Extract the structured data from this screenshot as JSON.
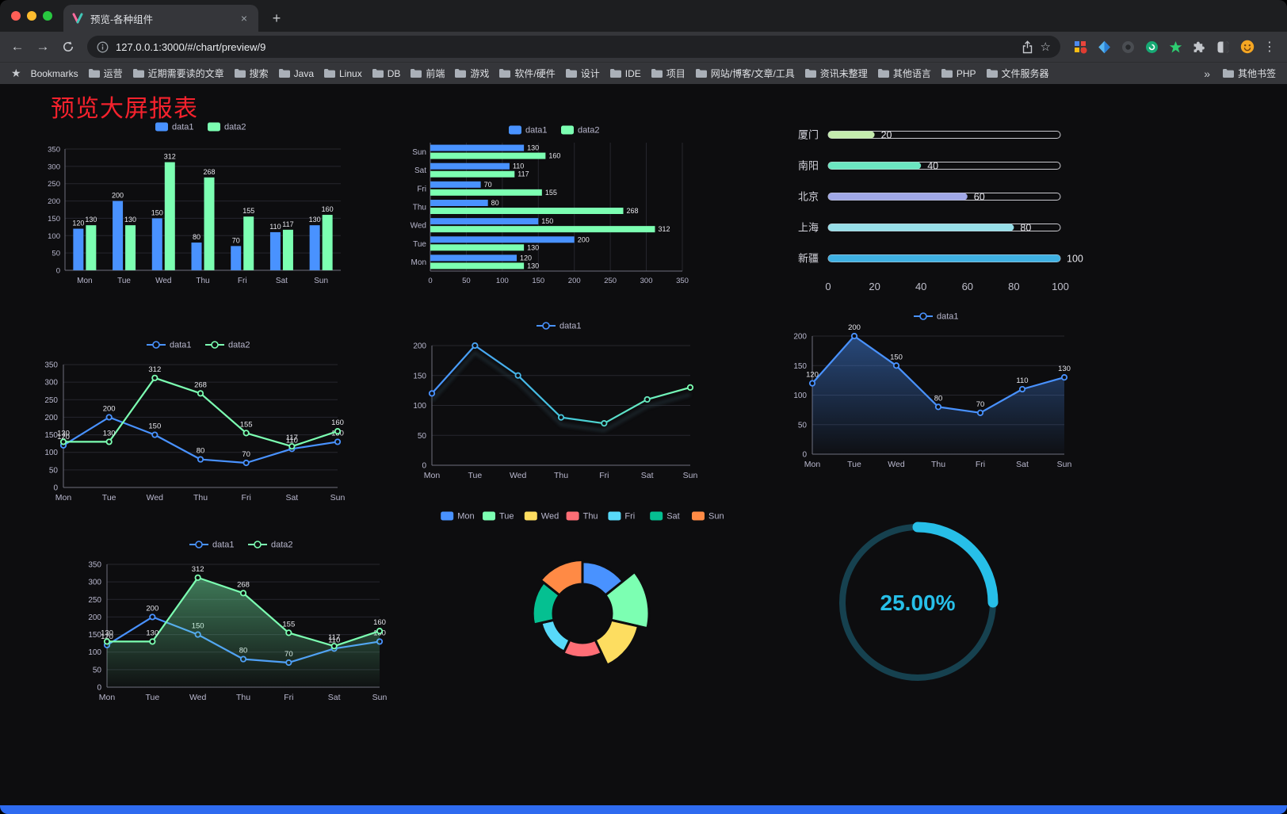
{
  "window": {
    "tab": {
      "title": "预览-各种组件"
    }
  },
  "icons": {
    "back": "←",
    "forward": "→",
    "new_tab": "+",
    "close_tab": "×",
    "menu": "⋮",
    "star_outline": "☆",
    "bookmarks_star": "★",
    "overflow": "»"
  },
  "toolbar": {
    "url": "127.0.0.1:3000/#/chart/preview/9"
  },
  "bookmarks_bar": {
    "bookmarks_label": "Bookmarks",
    "items": [
      "运营",
      "近期需要读的文章",
      "搜索",
      "Java",
      "Linux",
      "DB",
      "前端",
      "游戏",
      "软件/硬件",
      "设计",
      "IDE",
      "项目",
      "网站/博客/文章/工具",
      "资讯未整理",
      "其他语言",
      "PHP",
      "文件服务器"
    ],
    "other_bookmarks_label": "其他书签"
  },
  "page": {
    "title": "预览大屏报表",
    "accent_red": "#f5222d",
    "background": "#0d0d0f",
    "footer_color": "#2e6bf0"
  },
  "chart_data": [
    {
      "id": "bar-grouped",
      "type": "bar",
      "categories": [
        "Mon",
        "Tue",
        "Wed",
        "Thu",
        "Fri",
        "Sat",
        "Sun"
      ],
      "series": [
        {
          "name": "data1",
          "color": "#4992ff",
          "values": [
            120,
            200,
            150,
            80,
            70,
            110,
            130
          ]
        },
        {
          "name": "data2",
          "color": "#7cffb2",
          "values": [
            130,
            130,
            312,
            268,
            155,
            117,
            160
          ]
        }
      ],
      "ylim": [
        0,
        350
      ],
      "yticks": [
        0,
        50,
        100,
        150,
        200,
        250,
        300,
        350
      ],
      "labels": true,
      "legend_position": "top"
    },
    {
      "id": "bar-horizontal",
      "type": "hbar",
      "categories": [
        "Sun",
        "Sat",
        "Fri",
        "Thu",
        "Wed",
        "Tue",
        "Mon"
      ],
      "series": [
        {
          "name": "data1",
          "color": "#4992ff",
          "values": [
            130,
            110,
            70,
            80,
            150,
            200,
            120
          ]
        },
        {
          "name": "data2",
          "color": "#7cffb2",
          "values": [
            160,
            117,
            155,
            268,
            312,
            130,
            130
          ]
        }
      ],
      "xlim": [
        0,
        350
      ],
      "xticks": [
        0,
        50,
        100,
        150,
        200,
        250,
        300,
        350
      ],
      "labels": true,
      "legend_position": "top"
    },
    {
      "id": "progress-capsules",
      "type": "capsule",
      "rows": [
        {
          "label": "厦门",
          "value": 20,
          "color": "#c4ebad"
        },
        {
          "label": "南阳",
          "value": 40,
          "color": "#6be6c1"
        },
        {
          "label": "北京",
          "value": 60,
          "color": "#a0a7e6"
        },
        {
          "label": "上海",
          "value": 80,
          "color": "#96dee8"
        },
        {
          "label": "新疆",
          "value": 100,
          "color": "#3fb1e3"
        }
      ],
      "xlim": [
        0,
        100
      ],
      "xticks": [
        0,
        20,
        40,
        60,
        80,
        100
      ]
    },
    {
      "id": "line-two-series",
      "type": "line",
      "categories": [
        "Mon",
        "Tue",
        "Wed",
        "Thu",
        "Fri",
        "Sat",
        "Sun"
      ],
      "series": [
        {
          "name": "data1",
          "color": "#4992ff",
          "values": [
            120,
            200,
            150,
            80,
            70,
            110,
            130
          ]
        },
        {
          "name": "data2",
          "color": "#7cffb2",
          "values": [
            130,
            130,
            312,
            268,
            155,
            117,
            160
          ]
        }
      ],
      "ylim": [
        0,
        350
      ],
      "yticks": [
        0,
        50,
        100,
        150,
        200,
        250,
        300,
        350
      ],
      "labels": true,
      "legend_position": "top"
    },
    {
      "id": "line-gradient",
      "type": "line",
      "categories": [
        "Mon",
        "Tue",
        "Wed",
        "Thu",
        "Fri",
        "Sat",
        "Sun"
      ],
      "series": [
        {
          "name": "data1",
          "color": "gradient",
          "values": [
            120,
            200,
            150,
            80,
            70,
            110,
            130
          ]
        }
      ],
      "ylim": [
        0,
        200
      ],
      "yticks": [
        0,
        50,
        100,
        150,
        200
      ],
      "labels": false,
      "shadow": true,
      "legend_position": "top"
    },
    {
      "id": "line-area-blue",
      "type": "line",
      "categories": [
        "Mon",
        "Tue",
        "Wed",
        "Thu",
        "Fri",
        "Sat",
        "Sun"
      ],
      "series": [
        {
          "name": "data1",
          "color": "#4992ff",
          "values": [
            120,
            200,
            150,
            80,
            70,
            110,
            130
          ],
          "area": true
        }
      ],
      "ylim": [
        0,
        200
      ],
      "yticks": [
        0,
        50,
        100,
        150,
        200
      ],
      "labels": true,
      "legend_position": "top"
    },
    {
      "id": "line-area-green",
      "type": "line",
      "categories": [
        "Mon",
        "Tue",
        "Wed",
        "Thu",
        "Fri",
        "Sat",
        "Sun"
      ],
      "series": [
        {
          "name": "data1",
          "color": "#4992ff",
          "values": [
            120,
            200,
            150,
            80,
            70,
            110,
            130
          ]
        },
        {
          "name": "data2",
          "color": "#7cffb2",
          "values": [
            130,
            130,
            312,
            268,
            155,
            117,
            160
          ],
          "area": true
        }
      ],
      "ylim": [
        0,
        350
      ],
      "yticks": [
        0,
        50,
        100,
        150,
        200,
        250,
        300,
        350
      ],
      "labels": true,
      "legend_position": "top"
    },
    {
      "id": "rose-donut",
      "type": "pie",
      "rose": true,
      "slices": [
        {
          "label": "Mon",
          "value": 120,
          "color": "#4992ff"
        },
        {
          "label": "Tue",
          "value": 200,
          "color": "#7cffb2"
        },
        {
          "label": "Wed",
          "value": 150,
          "color": "#fddd60"
        },
        {
          "label": "Thu",
          "value": 80,
          "color": "#ff6e76"
        },
        {
          "label": "Fri",
          "value": 70,
          "color": "#58d9f9"
        },
        {
          "label": "Sat",
          "value": 110,
          "color": "#05c091"
        },
        {
          "label": "Sun",
          "value": 130,
          "color": "#ff8a45"
        }
      ],
      "legend_position": "top"
    },
    {
      "id": "gauge-progress",
      "type": "gauge",
      "value_label": "25.00%",
      "percent": 25,
      "color": "#27bfe8",
      "track_color": "#16414f"
    }
  ]
}
